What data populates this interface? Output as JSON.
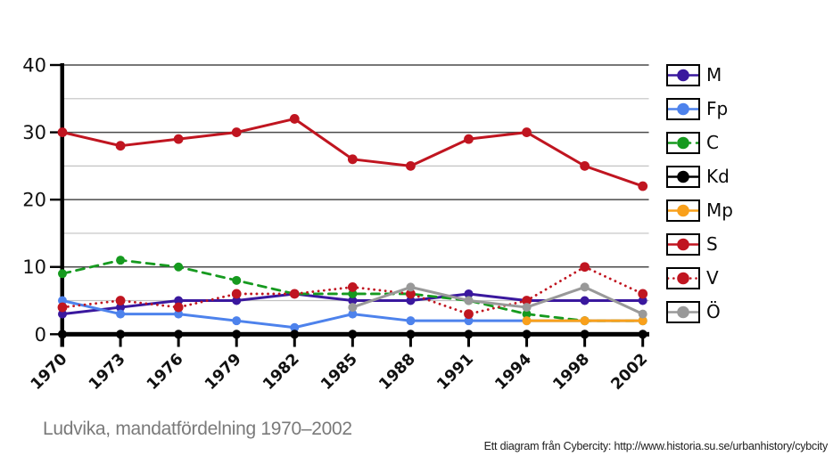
{
  "title": {
    "text": "Ludvika, mandatfördelning 1970–2002"
  },
  "credit": {
    "text": "Ett diagram från Cybercity: http://www.historia.su.se/urbanhistory/cybcity"
  },
  "colors": {
    "axis": "#000000",
    "grid_major": "#4a4a4a",
    "grid_minor": "#c2c2c2",
    "tick_label": "#111111"
  },
  "chart_data": {
    "type": "line",
    "title": "Ludvika, mandatfördelning 1970–2002",
    "xlabel": "",
    "ylabel": "",
    "x_labels": [
      "1970",
      "1973",
      "1976",
      "1979",
      "1982",
      "1985",
      "1988",
      "1991",
      "1994",
      "1998",
      "2002"
    ],
    "ylim": [
      0,
      40
    ],
    "y_ticks": [
      0,
      10,
      20,
      30,
      40
    ],
    "y_grid_minor": [
      5,
      15,
      25,
      35
    ],
    "grid": "horizontal",
    "legend_position": "right",
    "series": [
      {
        "name": "M",
        "color": "#3a189e",
        "style": "solid",
        "values": [
          3,
          4,
          5,
          5,
          6,
          5,
          5,
          6,
          5,
          5,
          5
        ]
      },
      {
        "name": "Fp",
        "color": "#4d82ec",
        "style": "solid",
        "values": [
          5,
          3,
          3,
          2,
          1,
          3,
          2,
          2,
          2,
          2,
          2
        ]
      },
      {
        "name": "C",
        "color": "#169a1f",
        "style": "dashed",
        "values": [
          9,
          11,
          10,
          8,
          6,
          6,
          6,
          5,
          3,
          2,
          2
        ]
      },
      {
        "name": "Kd",
        "color": "#000000",
        "style": "solid",
        "values": [
          0,
          0,
          0,
          0,
          0,
          0,
          0,
          0,
          0,
          0,
          0
        ]
      },
      {
        "name": "Mp",
        "color": "#f9a01b",
        "style": "solid",
        "values": [
          null,
          null,
          null,
          null,
          null,
          null,
          null,
          null,
          2,
          2,
          2
        ]
      },
      {
        "name": "S",
        "color": "#c01520",
        "style": "solid",
        "values": [
          30,
          28,
          29,
          30,
          32,
          26,
          25,
          29,
          30,
          25,
          22
        ]
      },
      {
        "name": "V",
        "color": "#c01520",
        "style": "dotted",
        "values": [
          4,
          5,
          4,
          6,
          6,
          7,
          6,
          3,
          5,
          10,
          6
        ]
      },
      {
        "name": "Ö",
        "color": "#999999",
        "style": "solid",
        "values": [
          null,
          null,
          null,
          null,
          null,
          4,
          7,
          5,
          4,
          7,
          3
        ]
      }
    ]
  }
}
